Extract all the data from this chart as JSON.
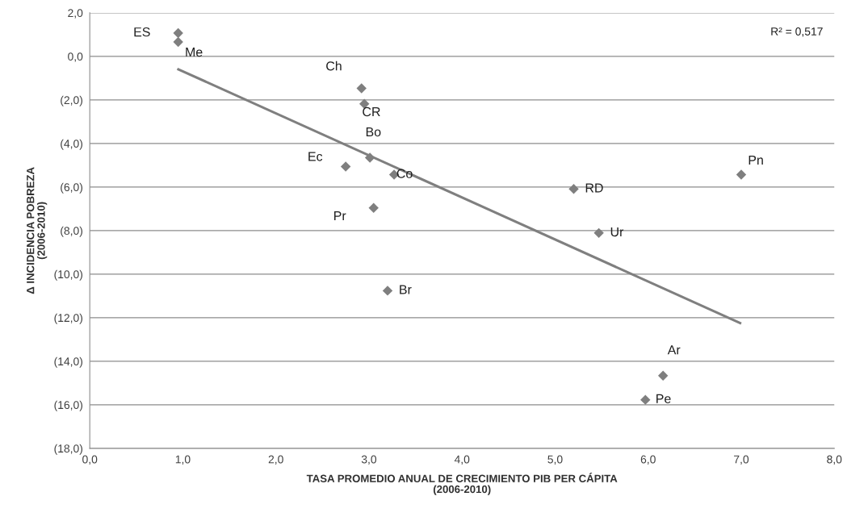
{
  "chart_data": {
    "type": "scatter",
    "xlabel": "TASA PROMEDIO ANUAL DE CRECIMIENTO PIB PER CÁPITA\n(2006-2010)",
    "ylabel": "Δ INCIDENCIA POBREZA\n(2006-2010)",
    "grid": "y",
    "series": [
      {
        "marker": "diamond",
        "color": "#7f7f7f",
        "x": [
          0.95,
          0.95,
          2.92,
          2.95,
          3.01,
          2.75,
          3.27,
          3.05,
          3.2,
          5.2,
          5.47,
          7.0,
          6.16,
          5.97
        ],
        "values": [
          1.07,
          0.66,
          -1.47,
          -2.18,
          -4.65,
          -5.06,
          -5.43,
          -6.96,
          -10.76,
          -6.09,
          -8.11,
          -5.43,
          -14.66,
          -15.77
        ]
      },
      {
        "type": "line",
        "color": "#7f7f7f",
        "x": [
          0.94,
          7.0
        ],
        "values": [
          -0.57,
          -12.27
        ]
      }
    ],
    "annotations": [
      {
        "text": "ES",
        "x": 0.95,
        "y": 1.07
      },
      {
        "text": "Me",
        "x": 0.95,
        "y": 0.66
      },
      {
        "text": "Ch",
        "x": 2.92,
        "y": -1.47
      },
      {
        "text": "CR",
        "x": 2.95,
        "y": -2.18
      },
      {
        "text": "Bo",
        "x": 3.01,
        "y": -4.65
      },
      {
        "text": "Ec",
        "x": 2.75,
        "y": -5.06
      },
      {
        "text": "Co",
        "x": 3.27,
        "y": -5.43
      },
      {
        "text": "Pr",
        "x": 3.05,
        "y": -6.96
      },
      {
        "text": "Br",
        "x": 3.2,
        "y": -10.76
      },
      {
        "text": "RD",
        "x": 5.2,
        "y": -6.09
      },
      {
        "text": "Ur",
        "x": 5.47,
        "y": -8.11
      },
      {
        "text": "Pn",
        "x": 7.0,
        "y": -5.43
      },
      {
        "text": "Ar",
        "x": 6.16,
        "y": -14.66
      },
      {
        "text": "Pe",
        "x": 5.97,
        "y": -15.77
      },
      "R² = 0,517"
    ],
    "xlim": [
      0,
      8
    ],
    "xticks": [
      {
        "value": 0,
        "label": "0,0"
      },
      {
        "value": 1,
        "label": "1,0"
      },
      {
        "value": 2,
        "label": "2,0"
      },
      {
        "value": 3,
        "label": "3,0"
      },
      {
        "value": 4,
        "label": "4,0"
      },
      {
        "value": 5,
        "label": "5,0"
      },
      {
        "value": 6,
        "label": "6,0"
      },
      {
        "value": 7,
        "label": "7,0"
      },
      {
        "value": 8,
        "label": "8,0"
      }
    ],
    "ylim": [
      -18,
      2
    ],
    "yticks": [
      {
        "value": 2,
        "label": "2,0"
      },
      {
        "value": 0,
        "label": "0,0"
      },
      {
        "value": -2,
        "label": "(2,0)"
      },
      {
        "value": -4,
        "label": "(4,0)"
      },
      {
        "value": -6,
        "label": "(6,0)"
      },
      {
        "value": -8,
        "label": "(8,0)"
      },
      {
        "value": -10,
        "label": "(10,0)"
      },
      {
        "value": -12,
        "label": "(12,0)"
      },
      {
        "value": -14,
        "label": "(14,0)"
      },
      {
        "value": -16,
        "label": "(16,0)"
      },
      {
        "value": -18,
        "label": "(18,0)"
      }
    ]
  }
}
